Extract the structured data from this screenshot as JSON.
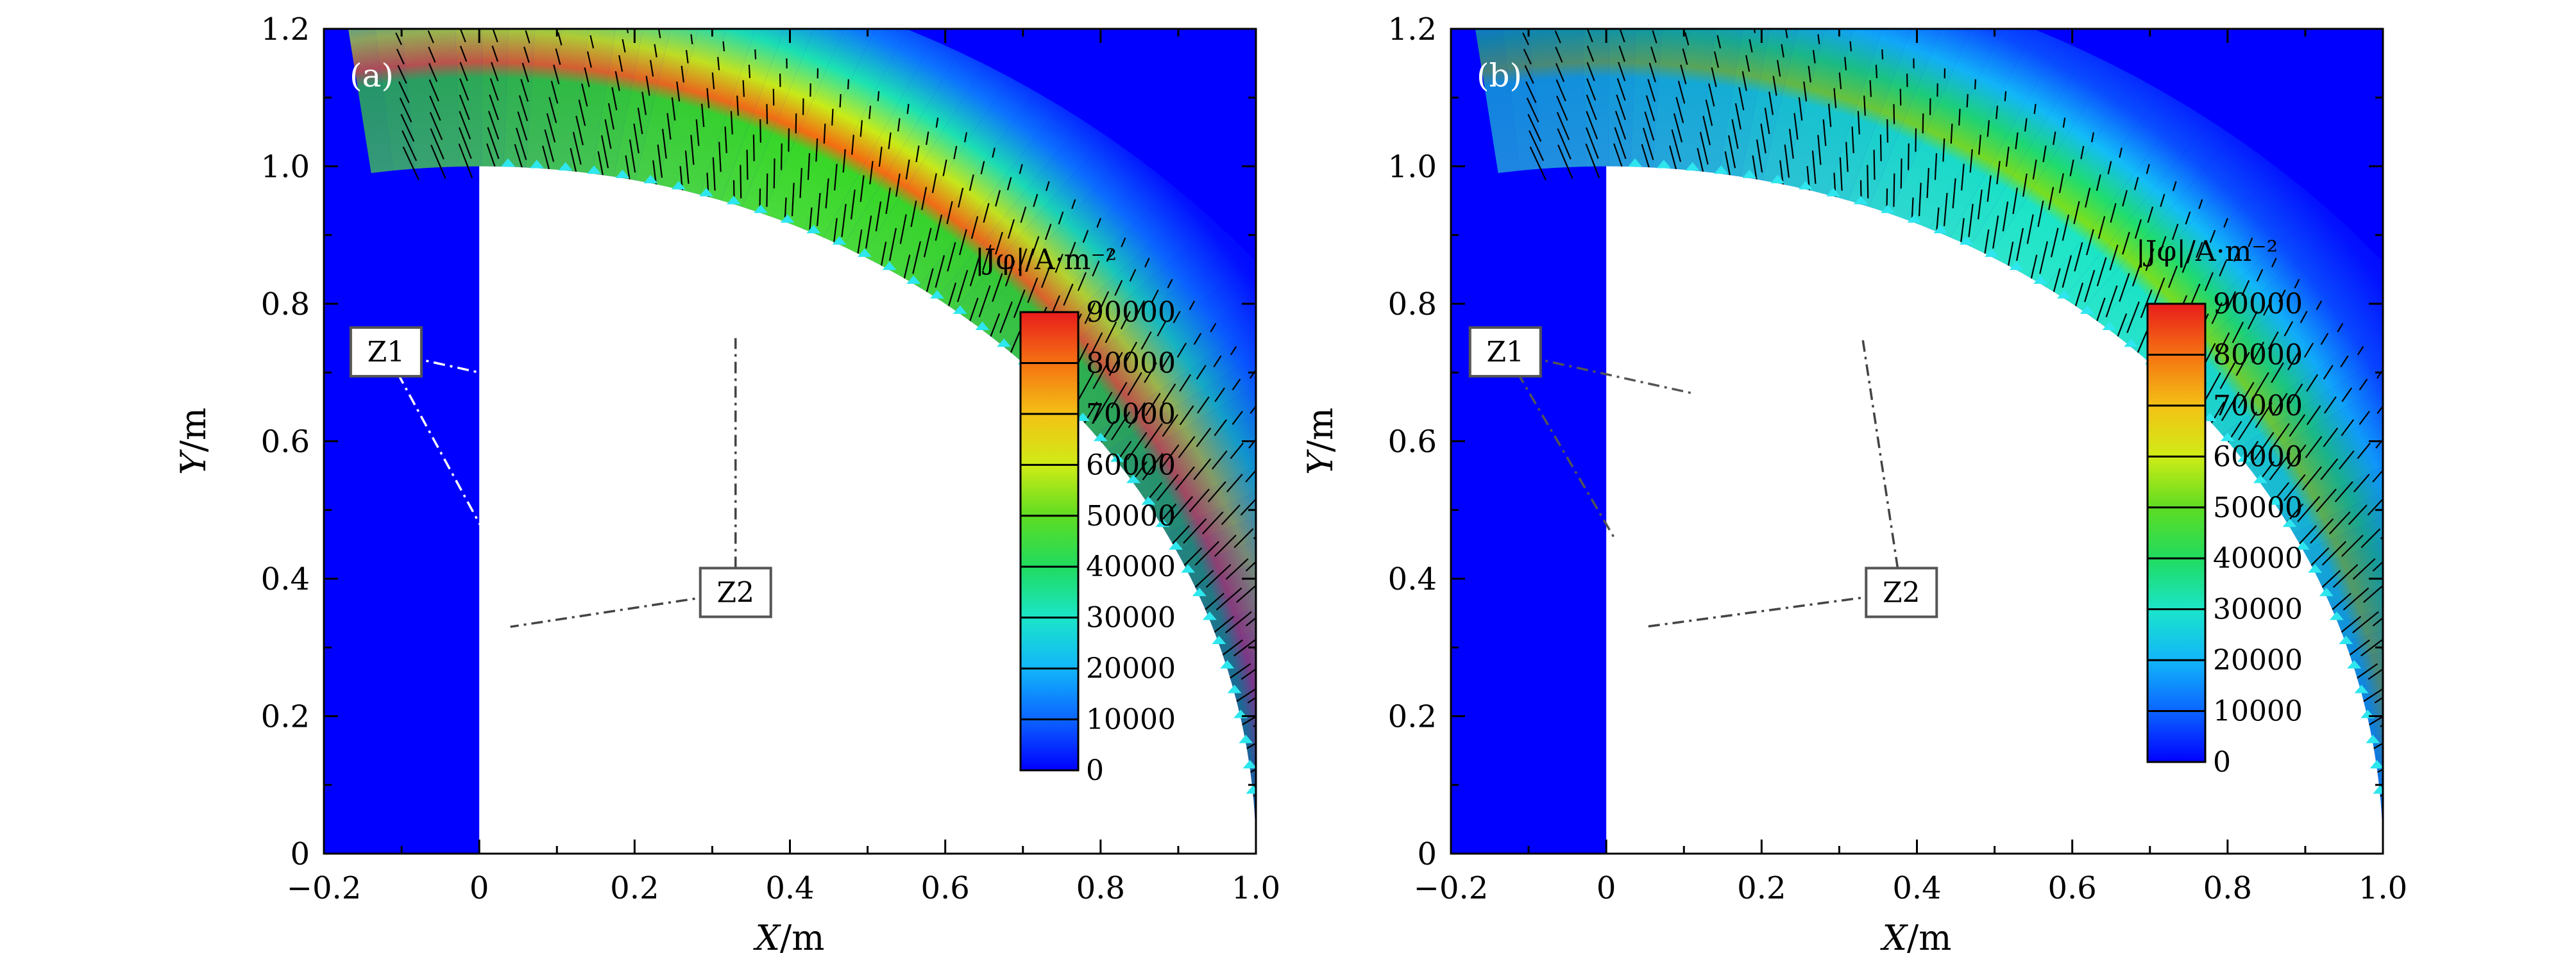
{
  "colormap": [
    "#0000ff",
    "#0a5cff",
    "#10a8ff",
    "#19e8e8",
    "#1ee08a",
    "#22d42a",
    "#8ee31b",
    "#f0f013",
    "#f5b415",
    "#f56a12",
    "#e81c1c"
  ],
  "chart_data": [
    {
      "type": "heatmap",
      "panel_label": "(a)",
      "xlabel_italic": "X",
      "xlabel_unit": "/m",
      "ylabel_italic": "Y",
      "ylabel_unit": "/m",
      "xlim": [
        -0.2,
        1.0
      ],
      "ylim": [
        0,
        1.2
      ],
      "x_ticks": [
        -0.2,
        0,
        0.2,
        0.4,
        0.6,
        0.8,
        1.0
      ],
      "x_tick_labels": [
        "−0.2",
        "0",
        "0.2",
        "0.4",
        "0.6",
        "0.8",
        "1.0"
      ],
      "y_ticks": [
        0,
        0.2,
        0.4,
        0.6,
        0.8,
        1.0,
        1.2
      ],
      "y_tick_labels": [
        "0",
        "0.2",
        "0.4",
        "0.6",
        "0.8",
        "1.0",
        "1.2"
      ],
      "colorbar": {
        "title": "|Jφ|/A·m⁻²",
        "min": 0,
        "max": 90000,
        "ticks": [
          0,
          10000,
          20000,
          30000,
          40000,
          50000,
          60000,
          70000,
          80000,
          90000
        ],
        "tick_labels": [
          "0",
          "10000",
          "20000",
          "30000",
          "40000",
          "50000",
          "60000",
          "70000",
          "80000",
          "90000"
        ]
      },
      "callouts": [
        {
          "text": "Z1",
          "box": [
            -0.12,
            0.73
          ],
          "pointers": [
            [
              0.12,
              0.67
            ],
            [
              0.01,
              0.46
            ]
          ],
          "line_color": "#ffffff"
        },
        {
          "text": "Z2",
          "box": [
            0.33,
            0.38
          ],
          "pointers": [
            [
              0.04,
              0.33
            ],
            [
              0.33,
              0.75
            ]
          ],
          "line_color": "#444444"
        }
      ],
      "field": {
        "inner_radius": 1.0,
        "peak_value": 85000,
        "peak_angle_deg": 65
      }
    },
    {
      "type": "heatmap",
      "panel_label": "(b)",
      "xlabel_italic": "X",
      "xlabel_unit": "/m",
      "ylabel_italic": "Y",
      "ylabel_unit": "/m",
      "xlim": [
        -0.2,
        1.0
      ],
      "ylim": [
        0,
        1.2
      ],
      "x_ticks": [
        -0.2,
        0,
        0.2,
        0.4,
        0.6,
        0.8,
        1.0
      ],
      "x_tick_labels": [
        "−0.2",
        "0",
        "0.2",
        "0.4",
        "0.6",
        "0.8",
        "1.0"
      ],
      "y_ticks": [
        0,
        0.2,
        0.4,
        0.6,
        0.8,
        1.0,
        1.2
      ],
      "y_tick_labels": [
        "0",
        "0.2",
        "0.4",
        "0.6",
        "0.8",
        "1.0",
        "1.2"
      ],
      "colorbar": {
        "title": "|Jφ|/A·m⁻²",
        "min": 0,
        "max": 90000,
        "ticks": [
          0,
          10000,
          20000,
          30000,
          40000,
          50000,
          60000,
          70000,
          80000,
          90000
        ],
        "tick_labels": [
          "0",
          "10000",
          "20000",
          "30000",
          "40000",
          "50000",
          "60000",
          "70000",
          "80000",
          "90000"
        ]
      },
      "callouts": [
        {
          "text": "Z1",
          "box": [
            -0.13,
            0.73
          ],
          "pointers": [
            [
              0.11,
              0.67
            ],
            [
              0.01,
              0.46
            ]
          ],
          "line_color": "#555555"
        },
        {
          "text": "Z2",
          "box": [
            0.38,
            0.38
          ],
          "pointers": [
            [
              0.05,
              0.33
            ],
            [
              0.33,
              0.75
            ]
          ],
          "line_color": "#444444"
        }
      ],
      "field": {
        "inner_radius": 1.0,
        "peak_value": 55000,
        "peak_angle_deg": 55
      }
    }
  ]
}
